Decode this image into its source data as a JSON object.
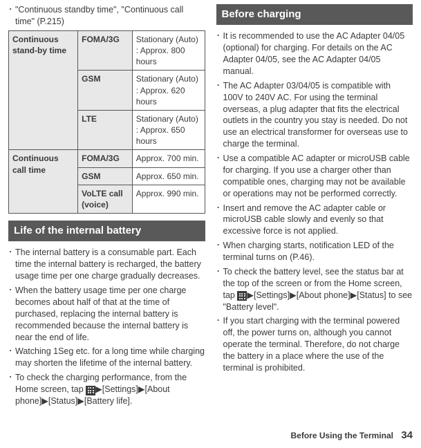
{
  "left": {
    "top_bullet": "\"Continuous standby time\", \"Continuous call time\" (P.215)",
    "table": {
      "r1c1": "Continuous stand-by time",
      "r1c2": "FOMA/3G",
      "r1c3": "Stationary (Auto) : Approx. 800 hours",
      "r2c2": "GSM",
      "r2c3": "Stationary (Auto) : Approx. 620 hours",
      "r3c2": "LTE",
      "r3c3": "Stationary (Auto) : Approx. 650 hours",
      "r4c1": "Continuous call time",
      "r4c2": "FOMA/3G",
      "r4c3": "Approx. 700 min.",
      "r5c2": "GSM",
      "r5c3": "Approx. 650 min.",
      "r6c2": "VoLTE call (voice)",
      "r6c3": "Approx. 990 min."
    },
    "section": "Life of the internal battery",
    "b1": "The internal battery is a consumable part. Each time the internal battery is recharged, the battery usage time per one charge gradually decreases.",
    "b2": "When the battery usage time per one charge becomes about half of that at the time of purchased, replacing the internal battery is recommended because the internal battery is near the end of life.",
    "b3": "Watching 1Seg etc. for a long time while charging may shorten the lifetime of the internal battery.",
    "b4a": "To check the charging performance, from the Home screen, tap ",
    "b4b": "[Settings]",
    "b4c": "[About phone]",
    "b4d": "[Status]",
    "b4e": "[Battery life]."
  },
  "right": {
    "section": "Before charging",
    "b1": "It is recommended to use the AC Adapter 04/05 (optional) for charging. For details on the AC Adapter 04/05, see the AC Adapter 04/05 manual.",
    "b2": "The AC Adapter 03/04/05 is compatible with 100V to 240V AC. For using the terminal overseas, a plug adapter that fits the electrical outlets in the country you stay is needed. Do not use an electrical transformer for overseas use to charge the terminal.",
    "b3": "Use a compatible AC adapter or microUSB cable for charging. If you use a charger other than compatible ones, charging may not be available or operations may not be performed correctly.",
    "b4": "Insert and remove the AC adapter cable or microUSB cable slowly and evenly so that excessive force is not applied.",
    "b5": "When charging starts, notification LED of the terminal turns on (P.46).",
    "b6a": "To check the battery level, see the status bar at the top of the screen or from the Home screen, tap ",
    "b6b": "[Settings]",
    "b6c": "[About phone]",
    "b6d": "[Status] to see \"Battery level\".",
    "b7": "If you start charging with the terminal powered off, the power turns on, although you cannot operate the terminal. Therefore, do not charge the battery in a place where the use of the terminal is prohibited."
  },
  "footer": {
    "text": "Before Using the Terminal",
    "page": "34"
  },
  "glyph": {
    "arrow": "▶"
  }
}
